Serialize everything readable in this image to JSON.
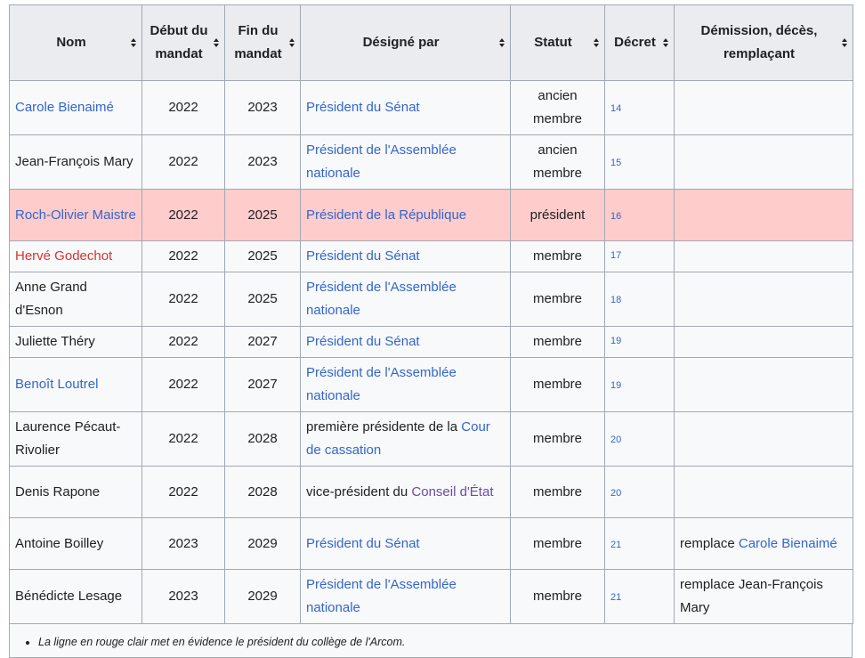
{
  "headers": {
    "nom": "Nom",
    "debut": "Début du mandat",
    "fin": "Fin du mandat",
    "designe": "Désigné par",
    "statut": "Statut",
    "decret": "Décret",
    "demission": "Démission, décès, remplaçant"
  },
  "rows": [
    {
      "name": "Carole Bienaimé",
      "start": "2022",
      "end": "2023",
      "appointer_prefix": "",
      "appointer": "Président du Sénat",
      "status": "ancien membre",
      "decree": "14",
      "replacement_prefix": "",
      "replacement": ""
    },
    {
      "name": "Jean-François Mary",
      "start": "2022",
      "end": "2023",
      "appointer_prefix": "",
      "appointer": "Président de l'Assemblée nationale",
      "status": "ancien membre",
      "decree": "15",
      "replacement_prefix": "",
      "replacement": ""
    },
    {
      "name": "Roch-Olivier Maistre",
      "start": "2022",
      "end": "2025",
      "appointer_prefix": "",
      "appointer": "Président de la République",
      "status": "président",
      "decree": "16",
      "replacement_prefix": "",
      "replacement": ""
    },
    {
      "name": "Hervé Godechot",
      "start": "2022",
      "end": "2025",
      "appointer_prefix": "",
      "appointer": "Président du Sénat",
      "status": "membre",
      "decree": "17",
      "replacement_prefix": "",
      "replacement": ""
    },
    {
      "name": "Anne Grand d'Esnon",
      "start": "2022",
      "end": "2025",
      "appointer_prefix": "",
      "appointer": "Président de l'Assemblée nationale",
      "status": "membre",
      "decree": "18",
      "replacement_prefix": "",
      "replacement": ""
    },
    {
      "name": "Juliette Théry",
      "start": "2022",
      "end": "2027",
      "appointer_prefix": "",
      "appointer": "Président du Sénat",
      "status": "membre",
      "decree": "19",
      "replacement_prefix": "",
      "replacement": ""
    },
    {
      "name": "Benoît Loutrel",
      "start": "2022",
      "end": "2027",
      "appointer_prefix": "",
      "appointer": "Président de l'Assemblée nationale",
      "status": "membre",
      "decree": "19",
      "replacement_prefix": "",
      "replacement": ""
    },
    {
      "name": "Laurence Pécaut-Rivolier",
      "start": "2022",
      "end": "2028",
      "appointer_prefix": "première présidente de la ",
      "appointer": "Cour de cassation",
      "status": "membre",
      "decree": "20",
      "replacement_prefix": "",
      "replacement": ""
    },
    {
      "name": "Denis Rapone",
      "start": "2022",
      "end": "2028",
      "appointer_prefix": "vice-président du ",
      "appointer": "Conseil d'État",
      "status": "membre",
      "decree": "20",
      "replacement_prefix": "",
      "replacement": ""
    },
    {
      "name": "Antoine Boilley",
      "start": "2023",
      "end": "2029",
      "appointer_prefix": "",
      "appointer": "Président du Sénat",
      "status": "membre",
      "decree": "21",
      "replacement_prefix": "remplace ",
      "replacement": "Carole Bienaimé"
    },
    {
      "name": "Bénédicte Lesage",
      "start": "2023",
      "end": "2029",
      "appointer_prefix": "",
      "appointer": "Président de l'Assemblée nationale",
      "status": "membre",
      "decree": "21",
      "replacement_prefix": "remplace Jean-François Mary",
      "replacement": ""
    }
  ],
  "footnote": "La ligne en rouge clair met en évidence le président du collège de l'Arcom.",
  "colors": {
    "link": "#3366cc",
    "redlink": "#d73333",
    "visited": "#6b4ba1",
    "highlight_row": "#ffcccc",
    "header_bg": "#eaecf0",
    "cell_bg": "#f8f9fa",
    "border": "#a2a9b1"
  },
  "icons": {
    "sort": "sort-arrows-icon"
  }
}
